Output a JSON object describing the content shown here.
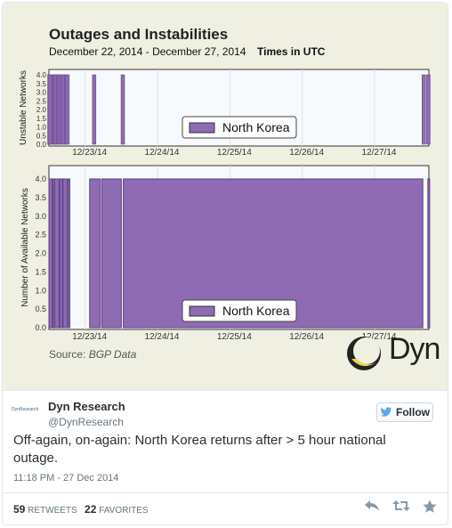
{
  "media": {
    "title": "Outages and Instabilities",
    "date_range": "December 22, 2014 - December 27, 2014",
    "timezone_note": "Times in UTC",
    "source_label": "Source:",
    "source_value": "BGP Data",
    "logo_text": "Dyn"
  },
  "chart_data": [
    {
      "type": "bar",
      "ylabel": "Unstable Networks",
      "ylim": [
        0,
        4.2
      ],
      "yticks": [
        "0.0",
        "0.5",
        "1.0",
        "1.5",
        "2.0",
        "2.5",
        "3.0",
        "3.5",
        "4.0"
      ],
      "xticks": [
        "12/23/14",
        "12/24/14",
        "12/25/14",
        "12/26/14",
        "12/27/14"
      ],
      "x_range": [
        "2014-12-22T12:00",
        "2014-12-27T18:00"
      ],
      "series": [
        {
          "name": "North Korea",
          "color": "#8e6bb3"
        }
      ],
      "bars": [
        {
          "x": "2014-12-22T12:10",
          "value": 4
        },
        {
          "x": "2014-12-22T12:20",
          "value": 4
        },
        {
          "x": "2014-12-22T13:30",
          "value": 4
        },
        {
          "x": "2014-12-22T13:50",
          "value": 4
        },
        {
          "x": "2014-12-22T14:20",
          "value": 4
        },
        {
          "x": "2014-12-22T15:00",
          "value": 4
        },
        {
          "x": "2014-12-22T15:30",
          "value": 4
        },
        {
          "x": "2014-12-22T16:10",
          "value": 4
        },
        {
          "x": "2014-12-22T16:50",
          "value": 4
        },
        {
          "x": "2014-12-22T17:40",
          "value": 4
        },
        {
          "x": "2014-12-22T18:10",
          "value": 4
        },
        {
          "x": "2014-12-23T03:00",
          "value": 4
        },
        {
          "x": "2014-12-23T12:30",
          "value": 4
        },
        {
          "x": "2014-12-27T16:20",
          "value": 4
        },
        {
          "x": "2014-12-27T17:50",
          "value": 4
        }
      ],
      "legend": "center"
    },
    {
      "type": "area",
      "ylabel": "Number of Available Networks",
      "ylim": [
        0,
        4.6
      ],
      "yticks": [
        "0.0",
        "0.5",
        "1.0",
        "1.5",
        "2.0",
        "2.5",
        "3.0",
        "3.5",
        "4.0"
      ],
      "xticks": [
        "12/23/14",
        "12/24/14",
        "12/25/14",
        "12/26/14",
        "12/27/14"
      ],
      "x_range": [
        "2014-12-22T12:00",
        "2014-12-27T18:00"
      ],
      "series": [
        {
          "name": "North Korea",
          "color": "#8e6bb3"
        }
      ],
      "segments": [
        {
          "start": "2014-12-22T12:00",
          "end": "2014-12-22T13:10",
          "value": 4
        },
        {
          "start": "2014-12-22T13:20",
          "end": "2014-12-22T13:40",
          "value": 4
        },
        {
          "start": "2014-12-22T13:55",
          "end": "2014-12-22T15:20",
          "value": 4
        },
        {
          "start": "2014-12-22T15:35",
          "end": "2014-12-22T16:30",
          "value": 4
        },
        {
          "start": "2014-12-22T16:40",
          "end": "2014-12-22T18:00",
          "value": 4
        },
        {
          "start": "2014-12-22T18:20",
          "end": "2014-12-22T18:40",
          "value": 4
        },
        {
          "start": "2014-12-23T01:30",
          "end": "2014-12-23T05:00",
          "value": 4
        },
        {
          "start": "2014-12-23T05:30",
          "end": "2014-12-23T12:00",
          "value": 4
        },
        {
          "start": "2014-12-23T12:40",
          "end": "2014-12-27T16:00",
          "value": 4
        },
        {
          "start": "2014-12-27T17:40",
          "end": "2014-12-27T18:00",
          "value": 4
        }
      ],
      "legend": "bottom-center"
    }
  ],
  "tweet": {
    "author_name": "Dyn Research",
    "author_handle": "@DynResearch",
    "avatar_text": "DynResearch",
    "follow_label": "Follow",
    "text": "Off-again, on-again: North Korea returns after > 5 hour national outage.",
    "timestamp": "11:18 PM - 27 Dec 2014",
    "retweets_count": "59",
    "retweets_label": "RETWEETS",
    "favorites_count": "22",
    "favorites_label": "FAVORITES"
  }
}
